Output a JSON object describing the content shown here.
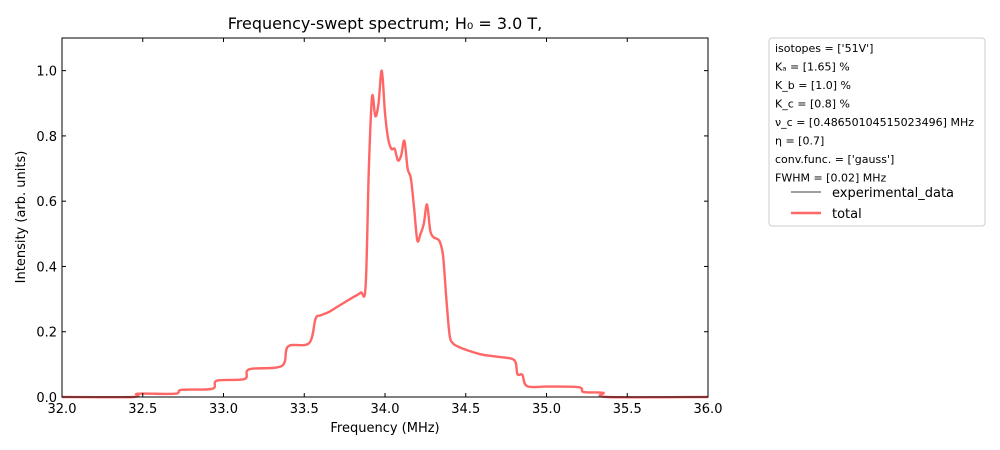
{
  "chart_data": {
    "type": "line",
    "title": "Frequency-swept spectrum; H₀ = 3.0 T,",
    "xlabel": "Frequency (MHz)",
    "ylabel": "Intensity (arb. units)",
    "xlim": [
      32.0,
      36.0
    ],
    "ylim": [
      0.0,
      1.1
    ],
    "xticks": [
      32.0,
      32.5,
      33.0,
      33.5,
      34.0,
      34.5,
      35.0,
      35.5,
      36.0
    ],
    "xtick_labels": [
      "32.0",
      "32.5",
      "33.0",
      "33.5",
      "34.0",
      "34.5",
      "35.0",
      "35.5",
      "36.0"
    ],
    "yticks": [
      0.0,
      0.2,
      0.4,
      0.6,
      0.8,
      1.0
    ],
    "ytick_labels": [
      "0.0",
      "0.2",
      "0.4",
      "0.6",
      "0.8",
      "1.0"
    ],
    "grid": false,
    "legend_position": "outside-right",
    "legend_notes": [
      "isotopes = ['51V']",
      "Kₐ = [1.65] %",
      "K_b = [1.0] %",
      "K_c = [0.8] %",
      "ν_c = [0.48650104515023496] MHz",
      "η = [0.7]",
      "conv.func. = ['gauss']",
      "FWHM = [0.02] MHz"
    ],
    "series": [
      {
        "name": "experimental_data",
        "color": "#808080",
        "x": [],
        "y": []
      },
      {
        "name": "total",
        "color": "#ff6666",
        "x": [
          32.0,
          32.44,
          32.47,
          32.7,
          32.74,
          32.93,
          32.96,
          33.13,
          33.16,
          33.36,
          33.4,
          33.53,
          33.57,
          33.6,
          33.65,
          33.7,
          33.75,
          33.8,
          33.85,
          33.88,
          33.9,
          33.92,
          33.94,
          33.96,
          33.98,
          34.0,
          34.02,
          34.04,
          34.06,
          34.08,
          34.1,
          34.12,
          34.14,
          34.16,
          34.18,
          34.2,
          34.22,
          34.24,
          34.26,
          34.28,
          34.3,
          34.32,
          34.34,
          34.36,
          34.38,
          34.4,
          34.42,
          34.45,
          34.5,
          34.6,
          34.7,
          34.8,
          34.82,
          34.85,
          34.88,
          35.0,
          35.2,
          35.23,
          35.35,
          35.38,
          36.0
        ],
        "y": [
          0.0,
          0.0,
          0.01,
          0.01,
          0.022,
          0.025,
          0.05,
          0.055,
          0.085,
          0.095,
          0.155,
          0.165,
          0.24,
          0.25,
          0.26,
          0.275,
          0.29,
          0.305,
          0.32,
          0.34,
          0.7,
          0.92,
          0.86,
          0.9,
          1.0,
          0.87,
          0.79,
          0.76,
          0.76,
          0.725,
          0.74,
          0.785,
          0.7,
          0.67,
          0.58,
          0.48,
          0.5,
          0.53,
          0.59,
          0.51,
          0.49,
          0.485,
          0.475,
          0.43,
          0.3,
          0.19,
          0.165,
          0.155,
          0.145,
          0.13,
          0.123,
          0.113,
          0.07,
          0.068,
          0.033,
          0.032,
          0.03,
          0.015,
          0.013,
          0.0,
          0.0
        ]
      }
    ]
  }
}
